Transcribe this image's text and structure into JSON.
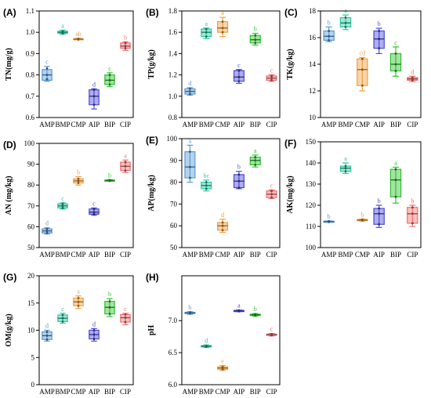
{
  "categories": [
    "AMP",
    "BMP",
    "CMP",
    "AIP",
    "BIP",
    "CIP"
  ],
  "colors": {
    "AMP": "#5b9bd5",
    "BMP": "#2fc8a0",
    "CMP": "#f0a040",
    "AIP": "#4b4bd6",
    "BIP": "#30c030",
    "CIP": "#f07070"
  },
  "chart_data": [
    {
      "type": "box",
      "panel": "(A)",
      "ylabel": "TN(mg/g)",
      "ylim": [
        0.6,
        1.1
      ],
      "yticks": [
        "0.6",
        "0.7",
        "0.8",
        "0.9",
        "1.0",
        "1.1"
      ],
      "categories": [
        "AMP",
        "BMP",
        "CMP",
        "AIP",
        "BIP",
        "CIP"
      ],
      "boxes": [
        {
          "category": "AMP",
          "min": 0.77,
          "q1": 0.775,
          "median": 0.8,
          "q3": 0.825,
          "max": 0.84,
          "points": [
            0.78,
            0.8,
            0.83
          ],
          "letter": "c"
        },
        {
          "category": "BMP",
          "min": 0.99,
          "q1": 0.995,
          "median": 1.0,
          "q3": 1.005,
          "max": 1.01,
          "points": [
            0.995,
            1.0,
            1.005
          ],
          "letter": "a"
        },
        {
          "category": "CMP",
          "min": 0.965,
          "q1": 0.966,
          "median": 0.968,
          "q3": 0.97,
          "max": 0.972,
          "points": [
            0.966,
            0.968,
            0.97
          ],
          "letter": "ab"
        },
        {
          "category": "AIP",
          "min": 0.64,
          "q1": 0.66,
          "median": 0.7,
          "q3": 0.73,
          "max": 0.735,
          "points": [
            0.66,
            0.7,
            0.73
          ],
          "letter": "d"
        },
        {
          "category": "BIP",
          "min": 0.745,
          "q1": 0.755,
          "median": 0.775,
          "q3": 0.8,
          "max": 0.81,
          "points": [
            0.755,
            0.775,
            0.8
          ],
          "letter": "c"
        },
        {
          "category": "CIP",
          "min": 0.915,
          "q1": 0.925,
          "median": 0.935,
          "q3": 0.95,
          "max": 0.955,
          "points": [
            0.925,
            0.935,
            0.95
          ],
          "letter": "b"
        }
      ]
    },
    {
      "type": "box",
      "panel": "(B)",
      "ylabel": "TP(g/kg)",
      "ylim": [
        0.8,
        1.8
      ],
      "yticks": [
        "0.8",
        "1.0",
        "1.2",
        "1.4",
        "1.6",
        "1.8"
      ],
      "categories": [
        "AMP",
        "BMP",
        "CMP",
        "AIP",
        "BIP",
        "CIP"
      ],
      "boxes": [
        {
          "category": "AMP",
          "min": 1.01,
          "q1": 1.02,
          "median": 1.045,
          "q3": 1.07,
          "max": 1.08,
          "points": [
            1.02,
            1.045,
            1.07
          ],
          "letter": "d"
        },
        {
          "category": "BMP",
          "min": 1.54,
          "q1": 1.56,
          "median": 1.6,
          "q3": 1.63,
          "max": 1.64,
          "points": [
            1.56,
            1.6,
            1.63
          ],
          "letter": "a"
        },
        {
          "category": "CMP",
          "min": 1.56,
          "q1": 1.6,
          "median": 1.64,
          "q3": 1.7,
          "max": 1.74,
          "points": [
            1.6,
            1.64,
            1.7
          ],
          "letter": "a"
        },
        {
          "category": "AIP",
          "min": 1.12,
          "q1": 1.14,
          "median": 1.18,
          "q3": 1.24,
          "max": 1.25,
          "points": [
            1.14,
            1.18,
            1.24
          ],
          "letter": "c"
        },
        {
          "category": "BIP",
          "min": 1.48,
          "q1": 1.5,
          "median": 1.53,
          "q3": 1.57,
          "max": 1.59,
          "points": [
            1.5,
            1.53,
            1.57
          ],
          "letter": "b"
        },
        {
          "category": "CIP",
          "min": 1.14,
          "q1": 1.15,
          "median": 1.17,
          "q3": 1.19,
          "max": 1.2,
          "points": [
            1.15,
            1.17,
            1.19
          ],
          "letter": "c"
        }
      ]
    },
    {
      "type": "box",
      "panel": "(C)",
      "ylabel": "TK(g/kg)",
      "ylim": [
        10,
        18
      ],
      "yticks": [
        "10",
        "12",
        "14",
        "16",
        "18"
      ],
      "categories": [
        "AMP",
        "BMP",
        "CMP",
        "AIP",
        "BIP",
        "CIP"
      ],
      "boxes": [
        {
          "category": "AMP",
          "min": 15.7,
          "q1": 15.8,
          "median": 16.1,
          "q3": 16.5,
          "max": 16.8,
          "points": [
            15.8,
            16.1,
            16.5
          ],
          "letter": "b"
        },
        {
          "category": "BMP",
          "min": 16.6,
          "q1": 16.8,
          "median": 17.1,
          "q3": 17.5,
          "max": 17.7,
          "points": [
            16.8,
            17.1,
            17.5
          ],
          "letter": "a"
        },
        {
          "category": "CMP",
          "min": 12.0,
          "q1": 12.4,
          "median": 13.6,
          "q3": 14.4,
          "max": 14.5,
          "points": [
            12.4,
            13.6,
            14.4
          ],
          "letter": "cd"
        },
        {
          "category": "AIP",
          "min": 14.8,
          "q1": 15.2,
          "median": 15.9,
          "q3": 16.5,
          "max": 16.7,
          "points": [
            15.2,
            15.9,
            16.5
          ],
          "letter": "b"
        },
        {
          "category": "BIP",
          "min": 13.1,
          "q1": 13.5,
          "median": 14.0,
          "q3": 14.8,
          "max": 15.3,
          "points": [
            13.5,
            14.0,
            14.8
          ],
          "letter": "c"
        },
        {
          "category": "CIP",
          "min": 12.7,
          "q1": 12.8,
          "median": 12.9,
          "q3": 13.0,
          "max": 13.1,
          "points": [
            12.8,
            12.9,
            13.0
          ],
          "letter": "d"
        }
      ]
    },
    {
      "type": "box",
      "panel": "(D)",
      "ylabel": "AN (mg/kg)",
      "ylim": [
        50,
        100
      ],
      "yticks": [
        "50",
        "60",
        "70",
        "80",
        "90",
        "100"
      ],
      "categories": [
        "AMP",
        "BMP",
        "CMP",
        "AIP",
        "BIP",
        "CIP"
      ],
      "boxes": [
        {
          "category": "AMP",
          "min": 56.5,
          "q1": 57.0,
          "median": 58.0,
          "q3": 59.0,
          "max": 59.5,
          "points": [
            57.0,
            58.0,
            59.0
          ],
          "letter": "d"
        },
        {
          "category": "BMP",
          "min": 68.5,
          "q1": 69.0,
          "median": 70.0,
          "q3": 71.0,
          "max": 71.5,
          "points": [
            69.0,
            70.0,
            71.0
          ],
          "letter": "c"
        },
        {
          "category": "CMP",
          "min": 80.0,
          "q1": 81.0,
          "median": 82.0,
          "q3": 83.0,
          "max": 84.0,
          "points": [
            81.0,
            82.0,
            83.0
          ],
          "letter": "b"
        },
        {
          "category": "AIP",
          "min": 65.5,
          "q1": 66.0,
          "median": 67.0,
          "q3": 68.5,
          "max": 69.0,
          "points": [
            66.0,
            67.0,
            68.5
          ],
          "letter": "c"
        },
        {
          "category": "BIP",
          "min": 81.8,
          "q1": 82.0,
          "median": 82.2,
          "q3": 82.4,
          "max": 82.6,
          "points": [
            82.0,
            82.2,
            82.4
          ],
          "letter": "b"
        },
        {
          "category": "CIP",
          "min": 86.0,
          "q1": 87.0,
          "median": 89.0,
          "q3": 91.0,
          "max": 92.0,
          "points": [
            87.0,
            89.0,
            91.0
          ],
          "letter": "a"
        }
      ]
    },
    {
      "type": "box",
      "panel": "(E)",
      "ylabel": "AP(mg/kg)",
      "ylim": [
        50,
        100
      ],
      "yticks": [
        "50",
        "60",
        "70",
        "80",
        "90",
        "100"
      ],
      "categories": [
        "AMP",
        "BMP",
        "CMP",
        "AIP",
        "BIP",
        "CIP"
      ],
      "boxes": [
        {
          "category": "AMP",
          "min": 80.0,
          "q1": 82.0,
          "median": 87.0,
          "q3": 94.0,
          "max": 97.0,
          "points": [
            82.0,
            87.0,
            94.0
          ],
          "letter": "a"
        },
        {
          "category": "BMP",
          "min": 76.0,
          "q1": 77.0,
          "median": 78.5,
          "q3": 80.0,
          "max": 81.0,
          "points": [
            77.0,
            78.5,
            80.0
          ],
          "letter": "bc"
        },
        {
          "category": "CMP",
          "min": 57.0,
          "q1": 58.0,
          "median": 60.0,
          "q3": 61.5,
          "max": 63.0,
          "points": [
            58.0,
            60.0,
            61.5
          ],
          "letter": "d"
        },
        {
          "category": "AIP",
          "min": 77.0,
          "q1": 77.5,
          "median": 80.5,
          "q3": 83.5,
          "max": 85.0,
          "points": [
            77.5,
            80.5,
            83.5
          ],
          "letter": "b"
        },
        {
          "category": "BIP",
          "min": 87.0,
          "q1": 88.0,
          "median": 90.0,
          "q3": 91.5,
          "max": 92.5,
          "points": [
            88.0,
            90.0,
            91.5
          ],
          "letter": "a"
        },
        {
          "category": "CIP",
          "min": 72.5,
          "q1": 73.0,
          "median": 74.5,
          "q3": 76.0,
          "max": 76.5,
          "points": [
            73.0,
            74.5,
            76.0
          ],
          "letter": "c"
        }
      ]
    },
    {
      "type": "box",
      "panel": "(F)",
      "ylabel": "AK(mg/kg)",
      "ylim": [
        100,
        150
      ],
      "yticks": [
        "100",
        "110",
        "120",
        "130",
        "140",
        "150"
      ],
      "categories": [
        "AMP",
        "BMP",
        "CMP",
        "AIP",
        "BIP",
        "CIP"
      ],
      "boxes": [
        {
          "category": "AMP",
          "min": 112.0,
          "q1": 112.1,
          "median": 112.3,
          "q3": 112.5,
          "max": 112.6,
          "points": [
            112.1,
            112.3,
            112.5
          ],
          "letter": "b"
        },
        {
          "category": "BMP",
          "min": 135.0,
          "q1": 136.0,
          "median": 137.5,
          "q3": 138.5,
          "max": 140.0,
          "points": [
            136.0,
            137.5,
            138.5
          ],
          "letter": "a"
        },
        {
          "category": "CMP",
          "min": 112.5,
          "q1": 112.8,
          "median": 113.0,
          "q3": 113.3,
          "max": 113.5,
          "points": [
            112.8,
            113.0,
            113.3
          ],
          "letter": "b"
        },
        {
          "category": "AIP",
          "min": 109.5,
          "q1": 111.0,
          "median": 116.0,
          "q3": 118.5,
          "max": 120.0,
          "points": [
            111.0,
            116.0,
            118.5
          ],
          "letter": "b"
        },
        {
          "category": "BIP",
          "min": 121.0,
          "q1": 124.0,
          "median": 132.0,
          "q3": 137.0,
          "max": 138.0,
          "points": [
            124.0,
            132.0,
            137.0
          ],
          "letter": "a"
        },
        {
          "category": "CIP",
          "min": 110.0,
          "q1": 111.5,
          "median": 116.0,
          "q3": 119.0,
          "max": 120.0,
          "points": [
            111.5,
            116.0,
            119.0
          ],
          "letter": "b"
        }
      ]
    },
    {
      "type": "box",
      "panel": "(G)",
      "ylabel": "OM(g/kg)",
      "ylim": [
        0,
        20
      ],
      "yticks": [
        "0",
        "5",
        "10",
        "15",
        "20"
      ],
      "categories": [
        "AMP",
        "BMP",
        "CMP",
        "AIP",
        "BIP",
        "CIP"
      ],
      "boxes": [
        {
          "category": "AMP",
          "min": 8.0,
          "q1": 8.3,
          "median": 9.0,
          "q3": 9.7,
          "max": 10.0,
          "points": [
            8.3,
            9.0,
            9.7
          ],
          "letter": "d"
        },
        {
          "category": "BMP",
          "min": 11.3,
          "q1": 11.6,
          "median": 12.2,
          "q3": 12.8,
          "max": 13.1,
          "points": [
            11.6,
            12.2,
            12.8
          ],
          "letter": "c"
        },
        {
          "category": "CMP",
          "min": 14.0,
          "q1": 14.5,
          "median": 15.2,
          "q3": 15.9,
          "max": 16.3,
          "points": [
            14.5,
            15.2,
            15.9
          ],
          "letter": "a"
        },
        {
          "category": "AIP",
          "min": 8.0,
          "q1": 8.4,
          "median": 9.2,
          "q3": 10.0,
          "max": 10.3,
          "points": [
            8.4,
            9.2,
            10.0
          ],
          "letter": "d"
        },
        {
          "category": "BIP",
          "min": 12.5,
          "q1": 13.0,
          "median": 14.2,
          "q3": 15.3,
          "max": 15.8,
          "points": [
            13.0,
            14.2,
            15.3
          ],
          "letter": "b"
        },
        {
          "category": "CIP",
          "min": 11.0,
          "q1": 11.5,
          "median": 12.3,
          "q3": 12.9,
          "max": 13.1,
          "points": [
            11.5,
            12.3,
            12.9
          ],
          "letter": "c"
        }
      ]
    },
    {
      "type": "box",
      "panel": "(H)",
      "ylabel": "pH",
      "ylim": [
        6.0,
        7.7
      ],
      "yticks": [
        "6.0",
        "6.5",
        "7.0"
      ],
      "categories": [
        "AMP",
        "BMP",
        "CMP",
        "AIP",
        "BIP",
        "CIP"
      ],
      "boxes": [
        {
          "category": "AMP",
          "min": 7.1,
          "q1": 7.11,
          "median": 7.12,
          "q3": 7.13,
          "max": 7.14,
          "points": [
            7.11,
            7.12,
            7.13
          ],
          "letter": "b"
        },
        {
          "category": "BMP",
          "min": 6.58,
          "q1": 6.59,
          "median": 6.6,
          "q3": 6.61,
          "max": 6.62,
          "points": [
            6.59,
            6.6,
            6.61
          ],
          "letter": "d"
        },
        {
          "category": "CMP",
          "min": 6.22,
          "q1": 6.24,
          "median": 6.26,
          "q3": 6.28,
          "max": 6.3,
          "points": [
            6.24,
            6.26,
            6.28
          ],
          "letter": "e"
        },
        {
          "category": "AIP",
          "min": 7.14,
          "q1": 7.145,
          "median": 7.15,
          "q3": 7.16,
          "max": 7.165,
          "points": [
            7.145,
            7.15,
            7.16
          ],
          "letter": "a"
        },
        {
          "category": "BIP",
          "min": 7.07,
          "q1": 7.08,
          "median": 7.09,
          "q3": 7.1,
          "max": 7.11,
          "points": [
            7.08,
            7.09,
            7.1
          ],
          "letter": "b"
        },
        {
          "category": "CIP",
          "min": 6.76,
          "q1": 6.77,
          "median": 6.78,
          "q3": 6.79,
          "max": 6.8,
          "points": [
            6.77,
            6.78,
            6.79
          ],
          "letter": "c"
        }
      ]
    }
  ]
}
